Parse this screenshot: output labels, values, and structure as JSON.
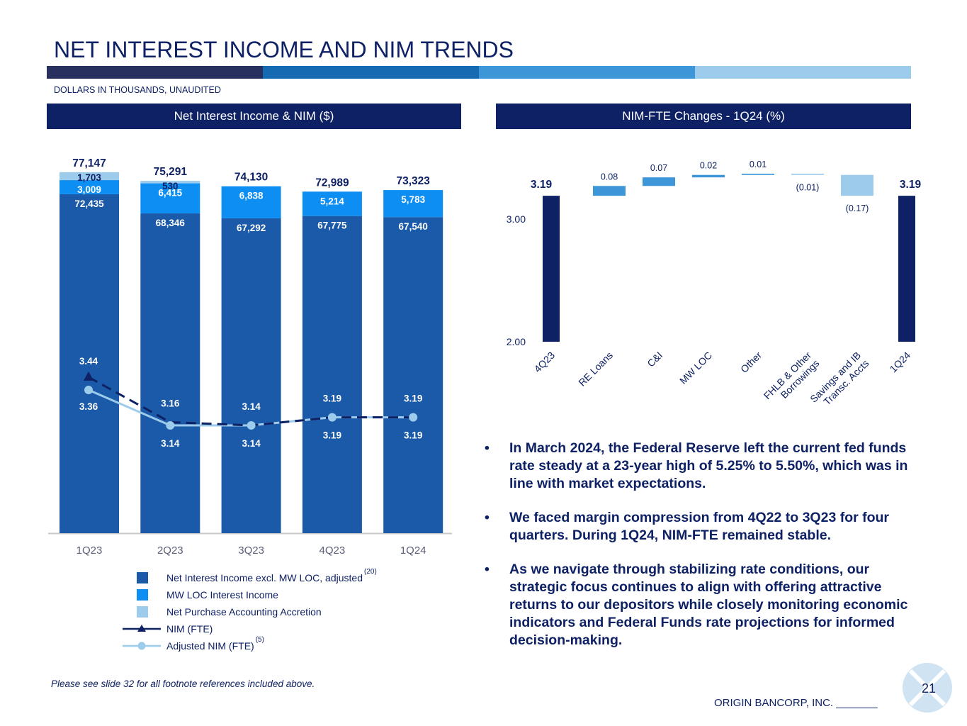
{
  "title": "NET INTEREST INCOME AND NIM TRENDS",
  "subtitle": "DOLLARS IN THOUSANDS, UNAUDITED",
  "colors": {
    "navy": "#0e2164",
    "dark_blue": "#1a5aa8",
    "mid_blue": "#0d8ef2",
    "light_blue": "#9dcbec",
    "stripe": [
      "#27305f",
      "#156ab2",
      "#3c96d8",
      "#9dcbec"
    ]
  },
  "left_panel": {
    "header": "Net Interest Income & NIM ($)"
  },
  "right_panel": {
    "header": "NIM-FTE Changes - 1Q24 (%)"
  },
  "legend": {
    "items": [
      {
        "label": "Net Interest Income excl. MW LOC, adjusted",
        "sup": "(20)",
        "icon": "square-dark"
      },
      {
        "label": "MW LOC Interest Income",
        "sup": "",
        "icon": "square-mid"
      },
      {
        "label": "Net Purchase Accounting Accretion",
        "sup": "",
        "icon": "square-light"
      },
      {
        "label": "NIM (FTE)",
        "sup": "",
        "icon": "dashed-line-triangle"
      },
      {
        "label": "Adjusted NIM (FTE)",
        "sup": "(5)",
        "icon": "line-circle"
      }
    ]
  },
  "chart_data": [
    {
      "type": "bar",
      "stacked": true,
      "title": "Net Interest Income & NIM ($)",
      "categories": [
        "1Q23",
        "2Q23",
        "3Q23",
        "4Q23",
        "1Q24"
      ],
      "series": [
        {
          "name": "Net Interest Income excl. MW LOC, adjusted",
          "values": [
            72435,
            68346,
            67292,
            67775,
            67540
          ],
          "labels": [
            "72,435",
            "68,346",
            "67,292",
            "67,775",
            "67,540"
          ]
        },
        {
          "name": "MW LOC Interest Income",
          "values": [
            3009,
            6415,
            6838,
            5214,
            5783
          ],
          "labels": [
            "3,009",
            "6,415",
            "6,838",
            "5,214",
            "5,783"
          ]
        },
        {
          "name": "Net Purchase Accounting Accretion",
          "values": [
            1703,
            530,
            0,
            0,
            0
          ],
          "labels": [
            "1,703",
            "530",
            "",
            "",
            ""
          ]
        }
      ],
      "totals": [
        77147,
        75291,
        74130,
        72989,
        73323
      ],
      "total_labels": [
        "77,147",
        "75,291",
        "74,130",
        "72,989",
        "73,323"
      ],
      "lines": [
        {
          "name": "NIM (FTE)",
          "values": [
            3.44,
            3.16,
            3.14,
            3.19,
            3.19
          ],
          "labels": [
            "3.44",
            "3.16",
            "3.14",
            "3.19",
            "3.19"
          ]
        },
        {
          "name": "Adjusted NIM (FTE)",
          "values": [
            3.36,
            3.14,
            3.14,
            3.19,
            3.19
          ],
          "labels": [
            "3.36",
            "3.14",
            "3.14",
            "3.19",
            "3.19"
          ]
        }
      ]
    },
    {
      "type": "waterfall",
      "title": "NIM-FTE Changes - 1Q24 (%)",
      "categories": [
        "4Q23",
        "RE Loans",
        "C&I",
        "MW LOC",
        "Other",
        "FHLB & Other Borrowings",
        "Savings and IB Transc. Accts",
        "1Q24"
      ],
      "category_lines": [
        [
          "4Q23"
        ],
        [
          "RE Loans"
        ],
        [
          "C&I"
        ],
        [
          "MW LOC"
        ],
        [
          "Other"
        ],
        [
          "FHLB & Other",
          "Borrowings"
        ],
        [
          "Savings and IB",
          "Transc. Accts"
        ],
        [
          "1Q24"
        ]
      ],
      "values": [
        3.19,
        0.08,
        0.07,
        0.02,
        0.01,
        -0.01,
        -0.17,
        3.19
      ],
      "labels": [
        "3.19",
        "0.08",
        "0.07",
        "0.02",
        "0.01",
        "(0.01)",
        "(0.17)",
        "3.19"
      ],
      "ylim": [
        2.0,
        3.3
      ],
      "yticks": [
        "2.00",
        "3.00"
      ]
    }
  ],
  "bullets": [
    "In March 2024, the Federal Reserve left the current fed funds rate steady at a 23-year high of 5.25% to 5.50%, which was in line with market expectations.",
    "We faced margin compression from 4Q22 to 3Q23 for four quarters. During 1Q24, NIM-FTE remained stable.",
    "As we navigate through stabilizing rate conditions, our strategic focus continues to align with offering attractive returns to our depositors while closely monitoring economic indicators and Federal Funds rate projections for informed decision-making."
  ],
  "footnote": "Please see slide 32 for all footnote references included above.",
  "company": "ORIGIN BANCORP, INC. _______",
  "page_number": "21"
}
